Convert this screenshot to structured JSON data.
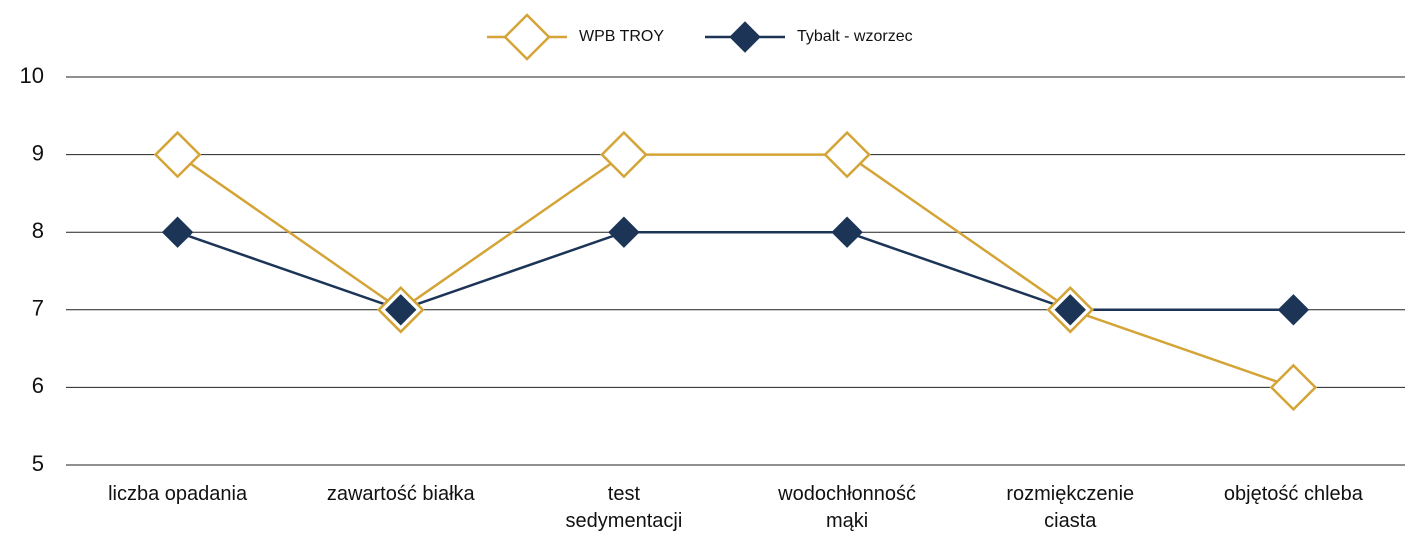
{
  "chart_data": {
    "type": "line",
    "categories": [
      "liczba opadania",
      "zawartość białka",
      "test\nsedymentacji",
      "wodochłonność\nmąki",
      "rozmiękczenie\nciasta",
      "objętość chleba"
    ],
    "series": [
      {
        "name": "WPB TROY",
        "color": "#d4a437",
        "marker": "hollow-diamond",
        "values": [
          9,
          7,
          9,
          9,
          7,
          6
        ]
      },
      {
        "name": "Tybalt - wzorzec",
        "color": "#1c3557",
        "marker": "filled-diamond",
        "values": [
          8,
          7,
          8,
          8,
          7,
          7
        ]
      }
    ],
    "ylim": [
      5,
      10
    ],
    "yticks": [
      5,
      6,
      7,
      8,
      9,
      10
    ],
    "grid": true,
    "legend": "top"
  }
}
